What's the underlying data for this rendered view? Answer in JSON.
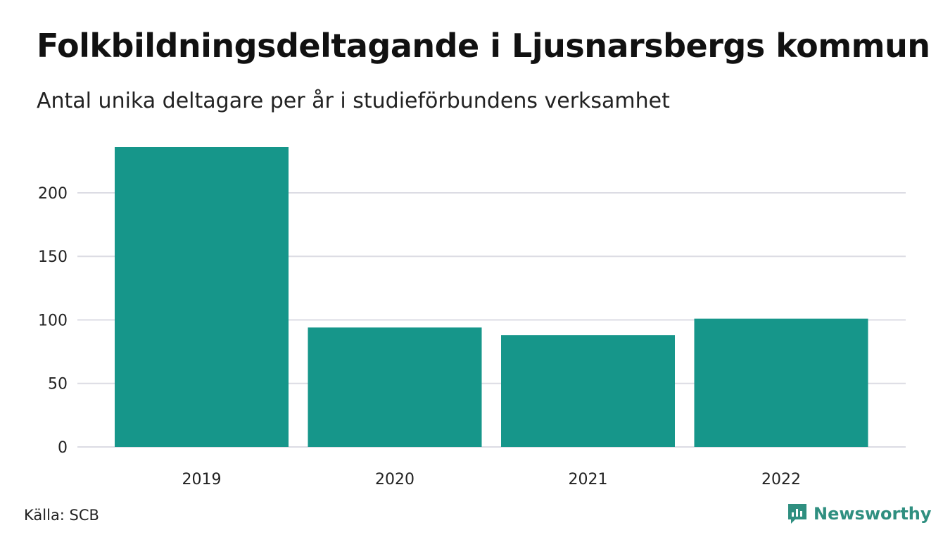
{
  "header": {
    "title": "Folkbildningsdeltagande i Ljusnarsbergs kommun",
    "subtitle": "Antal unika deltagare per år i studieförbundens verksamhet"
  },
  "footer": {
    "source": "Källa: SCB",
    "brand": "Newsworthy",
    "brand_icon": "bar-chart-speech-bubble-icon"
  },
  "colors": {
    "bar": "#16968a",
    "grid": "#dcdce4",
    "brand": "#2f8f80"
  },
  "chart_data": {
    "type": "bar",
    "title": "Folkbildningsdeltagande i Ljusnarsbergs kommun",
    "subtitle": "Antal unika deltagare per år i studieförbundens verksamhet",
    "categories": [
      "2019",
      "2020",
      "2021",
      "2022"
    ],
    "values": [
      236,
      94,
      88,
      101
    ],
    "xlabel": "",
    "ylabel": "",
    "ylim": [
      0,
      236
    ],
    "yticks": [
      0,
      50,
      100,
      150,
      200
    ],
    "grid": true,
    "legend": "none"
  }
}
